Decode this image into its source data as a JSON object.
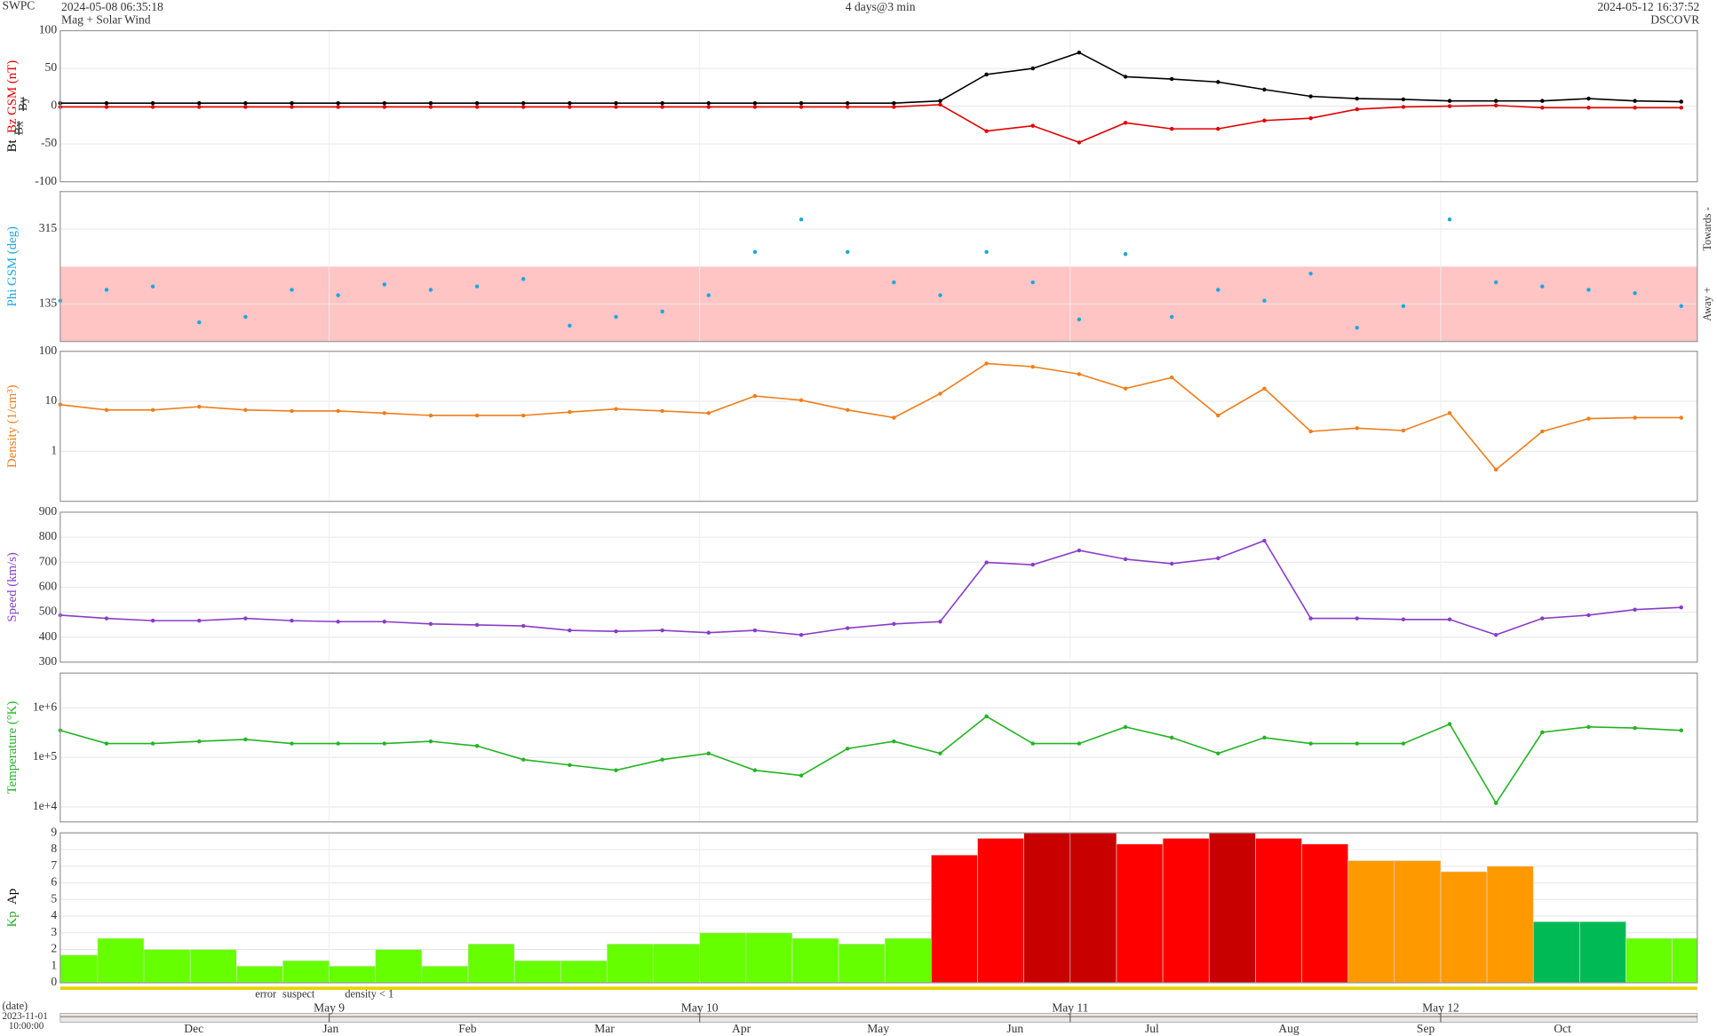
{
  "header": {
    "source": "SWPC",
    "start": "2024-05-08 06:35:18",
    "product": "Mag + Solar Wind",
    "span": "4 days@3 min",
    "end": "2024-05-12 16:37:52",
    "spacecraft": "DSCOVR"
  },
  "footer": {
    "date_label": "(date)",
    "origin_date": "2023-11-01",
    "origin_time": "10:00:00",
    "flags": [
      {
        "name": "error",
        "color": "#cc0000"
      },
      {
        "name": "suspect",
        "color": "#e8c800"
      },
      {
        "name": "density < 1",
        "color": "#ff8800"
      }
    ],
    "xlim": [
      0,
      106.04
    ],
    "xticks": [
      {
        "value": 17.42,
        "label": "May 9"
      },
      {
        "value": 41.42,
        "label": "May 10"
      },
      {
        "value": 65.42,
        "label": "May 11"
      },
      {
        "value": 89.42,
        "label": "May 12"
      }
    ],
    "months": [
      "Dec",
      "Jan",
      "Feb",
      "Mar",
      "Apr",
      "May",
      "Jun",
      "Jul",
      "Aug",
      "Sep",
      "Oct"
    ]
  },
  "chart_data": [
    {
      "type": "line",
      "xlim": [
        0,
        106.04
      ],
      "ylim": [
        -100,
        100
      ],
      "yticks": [
        -100,
        -50,
        0,
        50,
        100
      ],
      "x": [
        0,
        3,
        6,
        9,
        12,
        15,
        18,
        21,
        24,
        27,
        30,
        33,
        36,
        39,
        42,
        45,
        48,
        51,
        54,
        57,
        60,
        63,
        66,
        69,
        72,
        75,
        78,
        81,
        84,
        87,
        90,
        93,
        96,
        99,
        102,
        105
      ],
      "series": [
        {
          "name": "Bt",
          "color": "#000000",
          "values": [
            4,
            4,
            4,
            4,
            4,
            4,
            4,
            4,
            4,
            4,
            4,
            4,
            4,
            4,
            4,
            4,
            4,
            4,
            4,
            7,
            42,
            50,
            71,
            39,
            36,
            32,
            22,
            13,
            10,
            9,
            7,
            7,
            7,
            10,
            7,
            6
          ]
        },
        {
          "name": "Bz GSM (nT)",
          "color": "#e00000",
          "values": [
            -1,
            -1,
            -1,
            -1,
            -1,
            -1,
            -1,
            -1,
            -1,
            -1,
            -1,
            -1,
            -1,
            -1,
            -1,
            -1,
            -1,
            -1,
            -1,
            2,
            -33,
            -26,
            -48,
            -22,
            -30,
            -30,
            -19,
            -16,
            -4,
            -1,
            0,
            1,
            -2,
            -2,
            -2,
            -2
          ]
        }
      ],
      "hidden_series": [
        {
          "name": "Bx",
          "color": "#8a2be2"
        },
        {
          "name": "By",
          "color": "#00aaff"
        }
      ]
    },
    {
      "type": "scatter",
      "xlim": [
        0,
        106.04
      ],
      "ylim": [
        45,
        405
      ],
      "yticks": [
        135,
        315
      ],
      "x": [
        0,
        3,
        6,
        9,
        12,
        15,
        18,
        21,
        24,
        27,
        30,
        33,
        36,
        39,
        42,
        45,
        48,
        51,
        54,
        57,
        60,
        63,
        66,
        69,
        72,
        75,
        78,
        81,
        84,
        87,
        90,
        93,
        96,
        99,
        102,
        105
      ],
      "bands": [
        {
          "name": "Away +",
          "range": [
            45,
            225
          ],
          "color": "#ffc4c4"
        },
        {
          "name": "Towards -",
          "range": [
            225,
            405
          ],
          "color": "#ffffff"
        }
      ],
      "series": [
        {
          "name": "Phi GSM (deg)",
          "color": "#1aa7e0",
          "values": [
            143,
            169,
            177,
            91,
            104,
            169,
            156,
            182,
            169,
            177,
            195,
            83,
            104,
            117,
            156,
            260,
            338,
            260,
            187,
            156,
            260,
            187,
            98,
            255,
            104,
            169,
            143,
            208,
            78,
            130,
            338,
            187,
            177,
            169,
            161,
            130
          ]
        }
      ]
    },
    {
      "type": "line",
      "log": true,
      "xlim": [
        0,
        106.04
      ],
      "ylim": [
        0.1,
        100
      ],
      "yticks": [
        1,
        10,
        100
      ],
      "x": [
        0,
        3,
        6,
        9,
        12,
        15,
        18,
        21,
        24,
        27,
        30,
        33,
        36,
        39,
        42,
        45,
        48,
        51,
        54,
        57,
        60,
        63,
        66,
        69,
        72,
        75,
        78,
        81,
        84,
        87,
        90,
        93,
        96,
        99,
        102,
        105
      ],
      "series": [
        {
          "name": "Density (1/cm³)",
          "color": "#f07d1a",
          "values": [
            8.6,
            6.7,
            6.7,
            7.8,
            6.7,
            6.4,
            6.4,
            5.8,
            5.2,
            5.2,
            5.2,
            6.1,
            7.0,
            6.4,
            5.8,
            12.8,
            10.5,
            6.7,
            4.7,
            14.2,
            57,
            49,
            35,
            18,
            30,
            5.2,
            18,
            2.5,
            2.9,
            2.6,
            5.8,
            0.43,
            2.5,
            4.5,
            4.7,
            4.7
          ]
        }
      ]
    },
    {
      "type": "line",
      "xlim": [
        0,
        106.04
      ],
      "ylim": [
        300,
        900
      ],
      "yticks": [
        300,
        400,
        500,
        600,
        700,
        800,
        900
      ],
      "x": [
        0,
        3,
        6,
        9,
        12,
        15,
        18,
        21,
        24,
        27,
        30,
        33,
        36,
        39,
        42,
        45,
        48,
        51,
        54,
        57,
        60,
        63,
        66,
        69,
        72,
        75,
        78,
        81,
        84,
        87,
        90,
        93,
        96,
        99,
        102,
        105
      ],
      "series": [
        {
          "name": "Speed (km/s)",
          "color": "#8a3cc8",
          "values": [
            488,
            475,
            466,
            466,
            475,
            466,
            462,
            462,
            453,
            449,
            445,
            427,
            423,
            427,
            418,
            427,
            409,
            436,
            453,
            462,
            699,
            690,
            747,
            712,
            694,
            716,
            786,
            475,
            475,
            471,
            471,
            409,
            475,
            488,
            510,
            519
          ]
        }
      ]
    },
    {
      "type": "line",
      "log": true,
      "xlim": [
        0,
        106.04
      ],
      "ylim": [
        5000,
        5000000
      ],
      "yticks": [
        {
          "value": 10000,
          "label": "1e+4"
        },
        {
          "value": 100000,
          "label": "1e+5"
        },
        {
          "value": 1000000,
          "label": "1e+6"
        }
      ],
      "x": [
        0,
        3,
        6,
        9,
        12,
        15,
        18,
        21,
        24,
        27,
        30,
        33,
        36,
        39,
        42,
        45,
        48,
        51,
        54,
        57,
        60,
        63,
        66,
        69,
        72,
        75,
        78,
        81,
        84,
        87,
        90,
        93,
        96,
        99,
        102,
        105
      ],
      "series": [
        {
          "name": "Temperature (°K)",
          "color": "#22b422",
          "values": [
            350000,
            190000,
            190000,
            210000,
            230000,
            190000,
            190000,
            190000,
            210000,
            170000,
            90000,
            70000,
            55000,
            90000,
            120000,
            55000,
            43000,
            150000,
            210000,
            120000,
            670000,
            190000,
            190000,
            410000,
            250000,
            120000,
            250000,
            190000,
            190000,
            190000,
            470000,
            12000,
            320000,
            410000,
            390000,
            350000
          ]
        }
      ]
    },
    {
      "type": "histogram",
      "xlim": [
        0,
        106.04
      ],
      "ylim": [
        0,
        9
      ],
      "yticks": [
        0,
        1,
        2,
        3,
        4,
        5,
        6,
        7,
        8,
        9
      ],
      "bins": [
        0,
        2.42,
        5.42,
        8.42,
        11.42,
        14.42,
        17.42,
        20.42,
        23.42,
        26.42,
        29.42,
        32.42,
        35.42,
        38.42,
        41.42,
        44.42,
        47.42,
        50.42,
        53.42,
        56.42,
        59.42,
        62.42,
        65.42,
        68.42,
        71.42,
        74.42,
        77.42,
        80.42,
        83.42,
        86.42,
        89.42,
        92.42,
        95.42,
        98.42,
        101.42,
        104.42,
        106.04
      ],
      "series": [
        {
          "name": "Kp",
          "color": "#22aa22",
          "values": [
            1.67,
            2.67,
            2,
            2,
            1,
            1.33,
            1,
            2,
            1,
            2.33,
            1.33,
            1.33,
            2.33,
            2.33,
            3,
            3,
            2.67,
            2.33,
            2.67,
            7.67,
            8.67,
            9,
            9,
            8.33,
            8.67,
            9,
            8.67,
            8.33,
            7.33,
            7.33,
            6.67,
            7,
            3.67,
            3.67,
            2.67,
            2.67
          ],
          "colors": [
            "#66ff00",
            "#66ff00",
            "#66ff00",
            "#66ff00",
            "#66ff00",
            "#66ff00",
            "#66ff00",
            "#66ff00",
            "#66ff00",
            "#66ff00",
            "#66ff00",
            "#66ff00",
            "#66ff00",
            "#66ff00",
            "#66ff00",
            "#66ff00",
            "#66ff00",
            "#66ff00",
            "#66ff00",
            "#ff0000",
            "#ff0000",
            "#c80000",
            "#c80000",
            "#ff0000",
            "#ff0000",
            "#c80000",
            "#ff0000",
            "#ff0000",
            "#ff9900",
            "#ff9900",
            "#ff9900",
            "#ff9900",
            "#00bb55",
            "#00bb55",
            "#66ff00",
            "#66ff00"
          ]
        }
      ],
      "secondary_label": "Ap"
    }
  ]
}
